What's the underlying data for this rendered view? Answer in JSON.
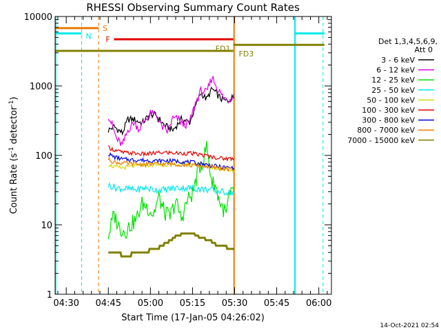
{
  "chart_data": {
    "type": "line",
    "title": "RHESSI Observing Summary Count Rates",
    "xlabel": "Start Time (17-Jan-05 04:26:02)",
    "ylabel": "Count Rate (s",
    "ylabel_sup": "-1",
    "ylabel_mid": " detector",
    "ylabel_sup2": "-1",
    "ylabel_end": ")",
    "x_range": [
      "04:26:02",
      "06:04:30"
    ],
    "y_scale": "log",
    "ylim": [
      1,
      10000
    ],
    "x_tick_labels": [
      "04:30",
      "04:45",
      "05:00",
      "05:15",
      "05:30",
      "05:45",
      "06:00"
    ],
    "x_tick_minutes": [
      270,
      285,
      300,
      315,
      330,
      345,
      360
    ],
    "y_tick_labels": [
      "1",
      "10",
      "100",
      "1000",
      "10000"
    ],
    "y_tick_values": [
      1,
      10,
      100,
      1000,
      10000
    ],
    "footer_date": "14-Oct-2021 02:54",
    "legend": {
      "placement": "right",
      "header": [
        "Det 1,3,4,5,6,9,",
        "Att 0"
      ],
      "entries": [
        {
          "label": "3 - 6 keV",
          "color": "#000000"
        },
        {
          "label": "6 - 12 keV",
          "color": "#e000e0"
        },
        {
          "label": "12 - 25 keV",
          "color": "#00e000"
        },
        {
          "label": "25 - 50 keV",
          "color": "#00e8e8"
        },
        {
          "label": "50 - 100 keV",
          "color": "#d8d800"
        },
        {
          "label": "100 - 300 keV",
          "color": "#e00000"
        },
        {
          "label": "300 - 800 keV",
          "color": "#0000e0"
        },
        {
          "label": "800 - 7000 keV",
          "color": "#e88000"
        },
        {
          "label": "7000 - 15000 keV",
          "color": "#808000"
        }
      ]
    },
    "flags": [
      {
        "label": "S",
        "start": 266.0,
        "end": 281.5,
        "level": 6800,
        "color": "#e87800"
      },
      {
        "label": "N",
        "start": 266.0,
        "end": 275.5,
        "level": 5700,
        "color": "#00e8e8"
      },
      {
        "label": "N",
        "start": 351.5,
        "end": 362.0,
        "level": 5700,
        "color": "#00e8e8"
      },
      {
        "label": "F",
        "start": 287.0,
        "end": 329.5,
        "level": 4700,
        "color": "#e00000"
      },
      {
        "label": "FD1",
        "start": 329.5,
        "end": 362.0,
        "level": 3900,
        "color": "#808000"
      },
      {
        "label": "FD3",
        "start": 266.0,
        "end": 329.5,
        "level": 3200,
        "color": "#808000"
      }
    ],
    "night_markers": [
      {
        "time": 266.2,
        "style": "solid",
        "color": "#00e8e8"
      },
      {
        "time": 275.5,
        "style": "dashed",
        "color": "#00e8e8"
      },
      {
        "time": 351.5,
        "style": "solid",
        "color": "#00e8e8"
      },
      {
        "time": 361.5,
        "style": "dashed",
        "color": "#00e8e8"
      },
      {
        "time": 281.5,
        "style": "dashed",
        "color": "#e87800"
      },
      {
        "time": 329.8,
        "style": "solid",
        "color": "#e87800"
      }
    ],
    "series": [
      {
        "name": "3 - 6 keV",
        "color": "#000000",
        "x": [
          285,
          287,
          290,
          292,
          294,
          297,
          300,
          302,
          305,
          308,
          311,
          314,
          316,
          318,
          320,
          322,
          325,
          327,
          329.8
        ],
        "y": [
          230,
          260,
          210,
          330,
          330,
          290,
          390,
          380,
          270,
          230,
          330,
          300,
          500,
          800,
          640,
          910,
          660,
          600,
          700
        ]
      },
      {
        "name": "6 - 12 keV",
        "color": "#e000e0",
        "x": [
          285,
          286,
          288,
          290,
          292,
          294,
          296,
          298,
          300,
          302,
          304,
          306,
          308,
          310,
          312,
          314,
          316,
          318,
          320,
          322,
          324,
          326,
          328,
          329.8
        ],
        "y": [
          380,
          300,
          170,
          140,
          230,
          300,
          240,
          320,
          400,
          380,
          260,
          220,
          340,
          330,
          270,
          300,
          560,
          850,
          800,
          1350,
          900,
          680,
          620,
          780
        ]
      },
      {
        "name": "12 - 25 keV",
        "color": "#00e000",
        "x": [
          285,
          287,
          289,
          291,
          293,
          295,
          297,
          299,
          301,
          303,
          305,
          307,
          309,
          311,
          313,
          315,
          317,
          319,
          320,
          321,
          322,
          323,
          325,
          327,
          328,
          329.8
        ],
        "y": [
          7,
          14,
          9,
          8,
          10,
          12,
          20,
          18,
          14,
          25,
          15,
          13,
          22,
          12,
          22,
          28,
          60,
          90,
          140,
          70,
          40,
          38,
          20,
          14,
          25,
          30
        ]
      },
      {
        "name": "25 - 50 keV",
        "color": "#00e8e8",
        "x": [
          285,
          288,
          291,
          295,
          298,
          301,
          305,
          309,
          313,
          317,
          321,
          325,
          329.8
        ],
        "y": [
          37,
          34,
          33,
          32,
          34,
          32,
          32,
          34,
          34,
          33,
          32,
          30,
          29
        ]
      },
      {
        "name": "50 - 100 keV",
        "color": "#d8d800",
        "x": [
          285,
          287,
          290,
          294,
          298,
          302,
          306,
          310,
          314,
          318,
          322,
          326,
          329.8
        ],
        "y": [
          75,
          68,
          66,
          70,
          72,
          73,
          74,
          74,
          75,
          73,
          67,
          63,
          60
        ]
      },
      {
        "name": "100 - 300 keV",
        "color": "#e00000",
        "x": [
          285,
          287,
          290,
          294,
          298,
          302,
          306,
          310,
          314,
          318,
          322,
          326,
          329.8
        ],
        "y": [
          130,
          120,
          110,
          107,
          104,
          108,
          110,
          107,
          107,
          102,
          95,
          90,
          90
        ]
      },
      {
        "name": "300 - 800 keV",
        "color": "#0000e0",
        "x": [
          285,
          287,
          290,
          294,
          298,
          302,
          306,
          310,
          314,
          318,
          322,
          326,
          329.8
        ],
        "y": [
          105,
          95,
          88,
          86,
          85,
          83,
          84,
          82,
          80,
          76,
          71,
          67,
          66
        ]
      },
      {
        "name": "800 - 7000 keV",
        "color": "#e88000",
        "x": [
          285,
          287,
          290,
          294,
          298,
          302,
          306,
          310,
          314,
          318,
          322,
          326,
          329.8
        ],
        "y": [
          88,
          80,
          77,
          75,
          74,
          75,
          75,
          74,
          72,
          70,
          68,
          64,
          62
        ]
      },
      {
        "name": "7000 - 15000 keV",
        "color": "#808000",
        "x": [
          285,
          288,
          291,
          294,
          297,
          300,
          303,
          306,
          309,
          312,
          315,
          318,
          321,
          324,
          327,
          329.8
        ],
        "y": [
          3.8,
          3.9,
          3.6,
          3.8,
          4.0,
          4.3,
          4.7,
          5.6,
          6.8,
          7.5,
          7.5,
          6.5,
          6.0,
          5.0,
          4.8,
          4.4
        ]
      }
    ]
  }
}
